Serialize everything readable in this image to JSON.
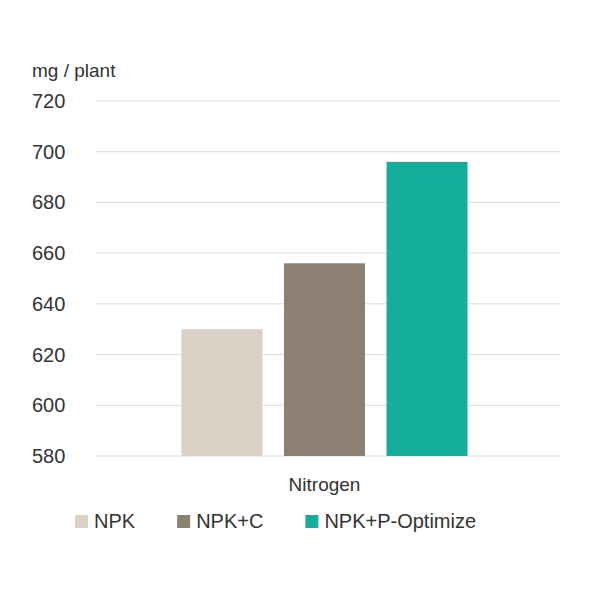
{
  "chart_data": {
    "type": "bar",
    "y_label": "mg / plant",
    "categories": [
      "Nitrogen"
    ],
    "series": [
      {
        "name": "NPK",
        "color": "#d9d0c6",
        "values": [
          630
        ]
      },
      {
        "name": "NPK+C",
        "color": "#8c8073",
        "values": [
          656
        ]
      },
      {
        "name": "NPK+P-Optimize",
        "color": "#14ae9a",
        "values": [
          696
        ]
      }
    ],
    "ylim": [
      580,
      720
    ],
    "yticks": [
      580,
      600,
      620,
      640,
      660,
      680,
      700,
      720
    ],
    "grid": true,
    "legend": "bottom"
  }
}
